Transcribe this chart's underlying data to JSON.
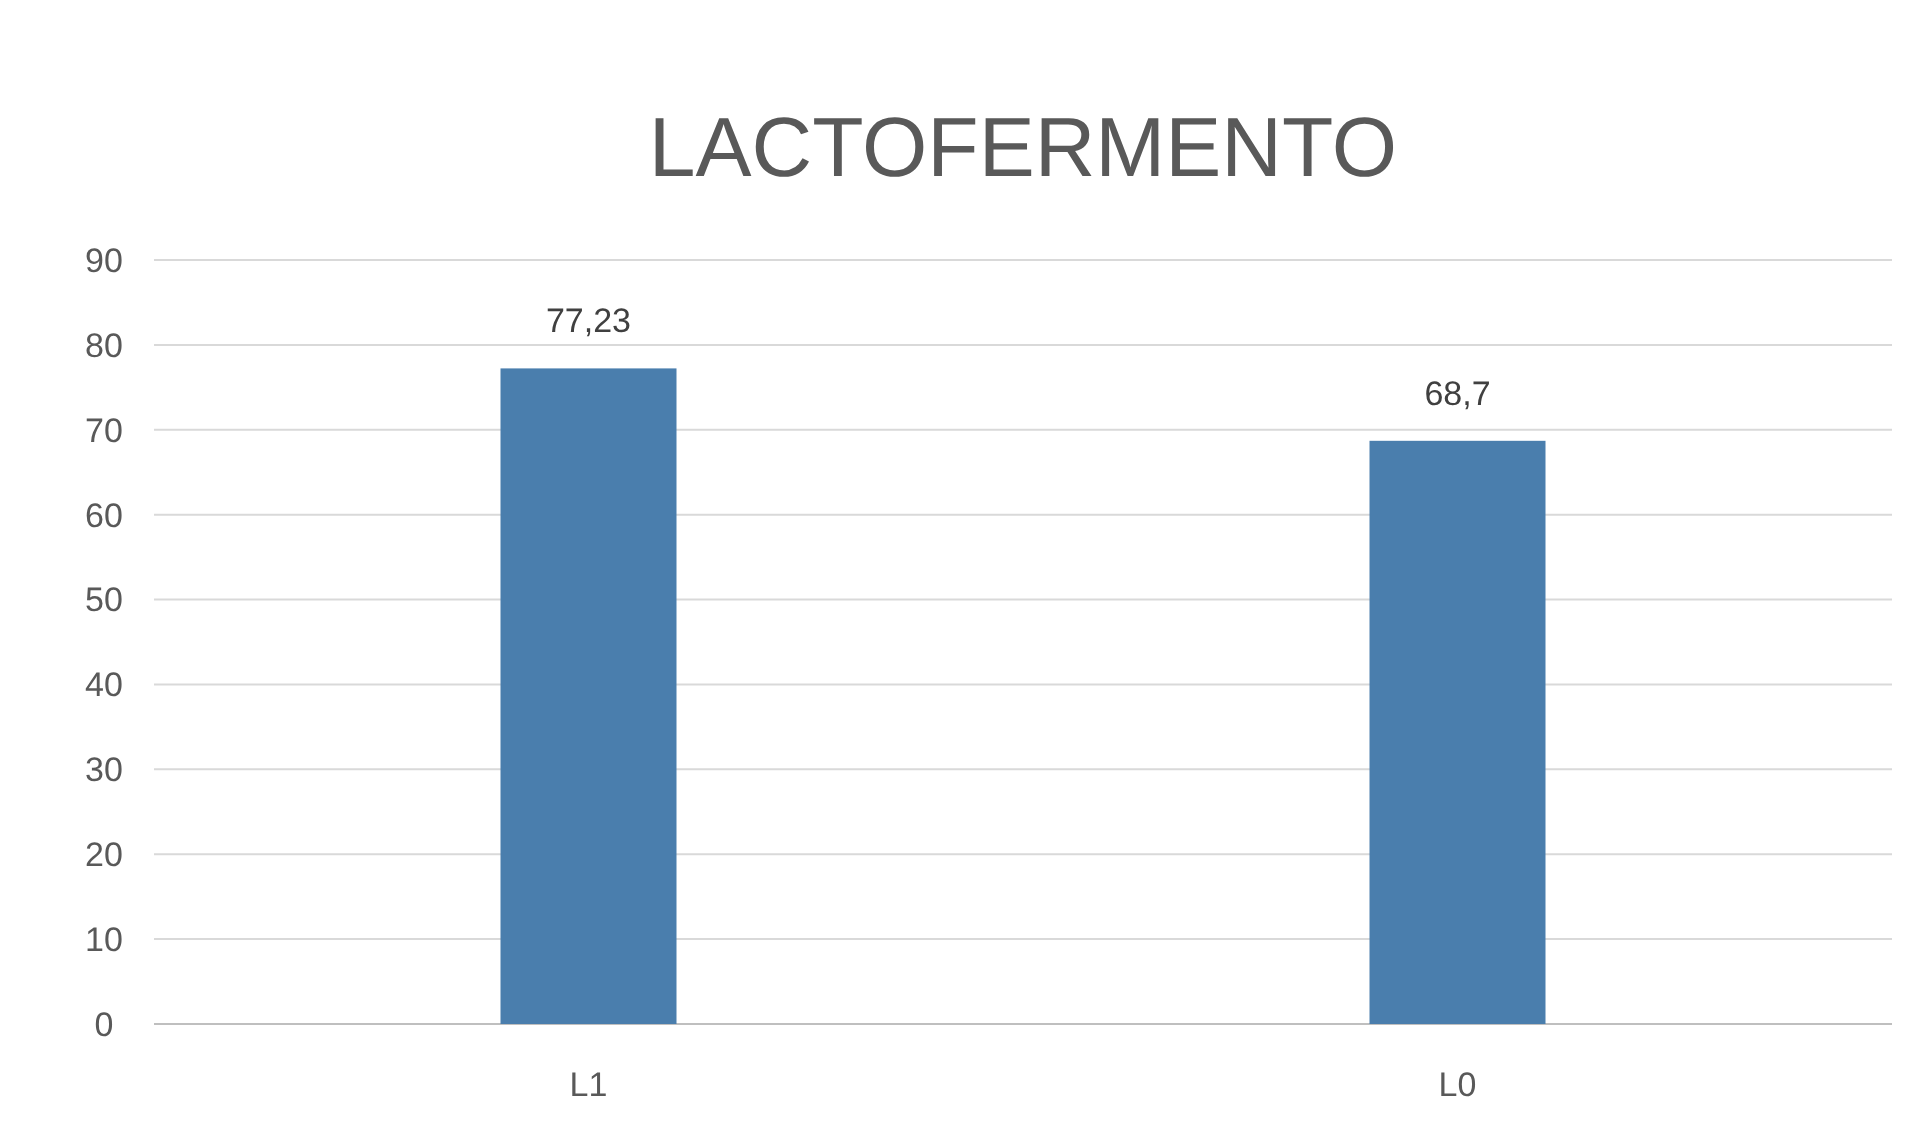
{
  "chart_data": {
    "type": "bar",
    "title": "LACTOFERMENTO",
    "categories": [
      "L1",
      "L0"
    ],
    "values": [
      77.23,
      68.7
    ],
    "value_labels": [
      "77,23",
      "68,7"
    ],
    "color": "#4a7ead",
    "ylim": [
      0,
      90
    ],
    "yticks": [
      0,
      10,
      20,
      30,
      40,
      50,
      60,
      70,
      80,
      90
    ],
    "grid": "y"
  }
}
